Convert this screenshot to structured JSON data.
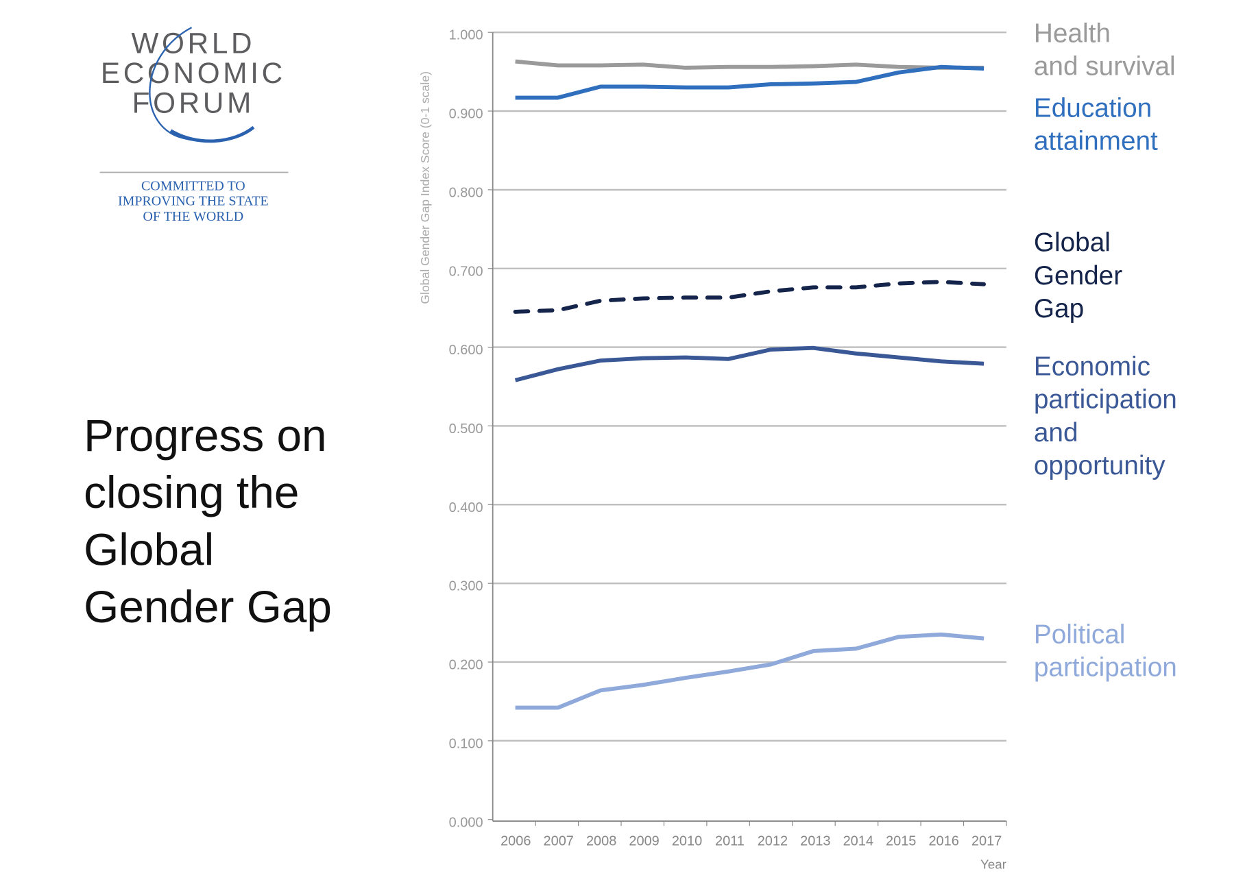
{
  "logo": {
    "lines": [
      "WORLD",
      "ECONOMIC",
      "FORUM"
    ],
    "tagline": [
      "COMMITTED TO",
      "IMPROVING THE STATE",
      "OF THE WORLD"
    ]
  },
  "title_lines": [
    "Progress on",
    "closing the",
    "Global",
    "Gender Gap"
  ],
  "chart_data": {
    "type": "line",
    "title": "Progress on closing the Global Gender Gap",
    "xlabel": "Year",
    "ylabel": "Global Gender Gap Index Score (0-1 scale)",
    "ylim": [
      0,
      1
    ],
    "grid": true,
    "legend_placement": "right (inline labels)",
    "x": [
      "2006",
      "2007",
      "2008",
      "2009",
      "2010",
      "2011",
      "2012",
      "2013",
      "2014",
      "2015",
      "2016",
      "2017"
    ],
    "y_ticks": [
      "0.000",
      "0.100",
      "0.200",
      "0.300",
      "0.400",
      "0.500",
      "0.600",
      "0.700",
      "0.800",
      "0.900",
      "1.000"
    ],
    "series": [
      {
        "name": "Health and survival",
        "label_lines": [
          "Health",
          "and survival"
        ],
        "color": "#9a9a9a",
        "dashed": false,
        "values": [
          0.963,
          0.958,
          0.958,
          0.959,
          0.955,
          0.956,
          0.956,
          0.957,
          0.959,
          0.956,
          0.955,
          0.955
        ]
      },
      {
        "name": "Education attainment",
        "label_lines": [
          "Education",
          "attainment"
        ],
        "color": "#2f6fbe",
        "dashed": false,
        "values": [
          0.917,
          0.917,
          0.931,
          0.931,
          0.93,
          0.93,
          0.934,
          0.935,
          0.937,
          0.949,
          0.956,
          0.954
        ]
      },
      {
        "name": "Global Gender Gap",
        "label_lines": [
          "Global",
          "Gender",
          "Gap"
        ],
        "color": "#14244a",
        "dashed": true,
        "values": [
          0.645,
          0.647,
          0.659,
          0.662,
          0.663,
          0.663,
          0.671,
          0.676,
          0.676,
          0.681,
          0.683,
          0.68
        ]
      },
      {
        "name": "Economic participation and opportunity",
        "label_lines": [
          "Economic",
          "participation",
          "and",
          "opportunity"
        ],
        "color": "#3a5896",
        "dashed": false,
        "values": [
          0.558,
          0.572,
          0.583,
          0.586,
          0.587,
          0.585,
          0.597,
          0.599,
          0.592,
          0.587,
          0.582,
          0.579
        ]
      },
      {
        "name": "Political participation",
        "label_lines": [
          "Political",
          "participation"
        ],
        "color": "#8ea9da",
        "dashed": false,
        "values": [
          0.142,
          0.142,
          0.164,
          0.171,
          0.18,
          0.188,
          0.197,
          0.214,
          0.217,
          0.232,
          0.235,
          0.23
        ]
      }
    ]
  }
}
